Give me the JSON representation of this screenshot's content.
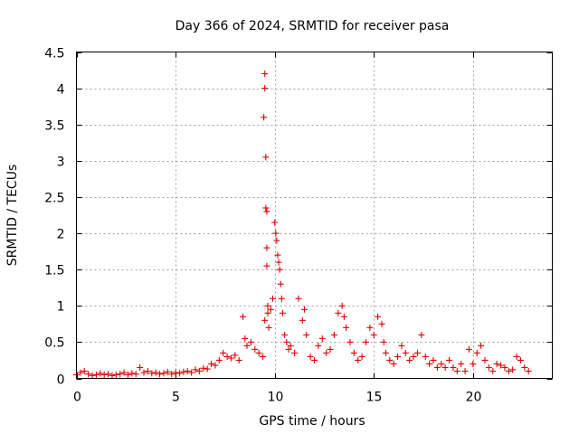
{
  "chart_data": {
    "type": "scatter",
    "title": "Day 366 of 2024, SRMTID for receiver pasa",
    "xlabel": "GPS time / hours",
    "ylabel": "SRMTID / TECUs",
    "xlim": [
      0,
      24
    ],
    "ylim": [
      0,
      4.5
    ],
    "xticks": [
      0,
      5,
      10,
      15,
      20
    ],
    "yticks": [
      0,
      0.5,
      1,
      1.5,
      2,
      2.5,
      3,
      3.5,
      4,
      4.5
    ],
    "xtick_labels": [
      "0",
      "5",
      "10",
      "15",
      "20"
    ],
    "ytick_labels": [
      "0",
      "0.5",
      "1",
      "1.5",
      "2",
      "2.5",
      "3",
      "3.5",
      "4",
      "4.5"
    ],
    "grid": true,
    "marker": "+",
    "color": "#e00000",
    "series": [
      {
        "name": "pasa",
        "x": [
          0.0,
          0.2,
          0.4,
          0.6,
          0.8,
          1.0,
          1.2,
          1.4,
          1.6,
          1.8,
          2.0,
          2.2,
          2.4,
          2.6,
          2.8,
          3.0,
          3.2,
          3.4,
          3.6,
          3.8,
          4.0,
          4.2,
          4.4,
          4.6,
          4.8,
          5.0,
          5.2,
          5.4,
          5.6,
          5.8,
          6.0,
          6.2,
          6.4,
          6.6,
          6.8,
          7.0,
          7.2,
          7.4,
          7.6,
          7.8,
          8.0,
          8.2,
          8.4,
          8.5,
          8.6,
          8.8,
          9.0,
          9.2,
          9.4,
          9.45,
          9.5,
          9.5,
          9.5,
          9.55,
          9.55,
          9.6,
          9.6,
          9.6,
          9.65,
          9.65,
          9.7,
          9.8,
          9.9,
          10.0,
          10.05,
          10.1,
          10.15,
          10.2,
          10.25,
          10.3,
          10.35,
          10.4,
          10.5,
          10.6,
          10.7,
          10.8,
          11.0,
          11.2,
          11.4,
          11.5,
          11.6,
          11.8,
          12.0,
          12.2,
          12.4,
          12.6,
          12.8,
          13.0,
          13.2,
          13.4,
          13.5,
          13.6,
          13.8,
          14.0,
          14.2,
          14.4,
          14.6,
          14.8,
          15.0,
          15.2,
          15.4,
          15.5,
          15.6,
          15.8,
          16.0,
          16.2,
          16.4,
          16.6,
          16.8,
          17.0,
          17.2,
          17.4,
          17.6,
          17.8,
          18.0,
          18.2,
          18.4,
          18.6,
          18.8,
          19.0,
          19.2,
          19.4,
          19.6,
          19.8,
          20.0,
          20.2,
          20.4,
          20.6,
          20.8,
          21.0,
          21.2,
          21.4,
          21.6,
          21.8,
          22.0,
          22.2,
          22.4,
          22.6,
          22.8
        ],
        "y": [
          0.05,
          0.08,
          0.1,
          0.06,
          0.04,
          0.05,
          0.07,
          0.05,
          0.06,
          0.04,
          0.05,
          0.06,
          0.08,
          0.05,
          0.07,
          0.06,
          0.15,
          0.08,
          0.1,
          0.07,
          0.08,
          0.06,
          0.07,
          0.09,
          0.06,
          0.08,
          0.07,
          0.09,
          0.1,
          0.08,
          0.12,
          0.1,
          0.14,
          0.13,
          0.2,
          0.18,
          0.25,
          0.35,
          0.3,
          0.28,
          0.32,
          0.25,
          0.85,
          0.55,
          0.45,
          0.5,
          0.4,
          0.35,
          0.3,
          3.6,
          4.2,
          4.0,
          0.8,
          3.05,
          2.35,
          2.3,
          1.8,
          1.55,
          1.0,
          0.9,
          0.7,
          0.95,
          1.1,
          2.15,
          2.0,
          1.9,
          1.7,
          1.6,
          1.5,
          1.3,
          1.1,
          0.9,
          0.6,
          0.5,
          0.4,
          0.45,
          0.35,
          1.1,
          0.8,
          0.95,
          0.6,
          0.3,
          0.25,
          0.45,
          0.55,
          0.35,
          0.4,
          0.6,
          0.9,
          1.0,
          0.85,
          0.7,
          0.5,
          0.35,
          0.25,
          0.3,
          0.5,
          0.7,
          0.6,
          0.85,
          0.75,
          0.5,
          0.35,
          0.25,
          0.2,
          0.3,
          0.45,
          0.35,
          0.25,
          0.3,
          0.35,
          0.6,
          0.3,
          0.2,
          0.25,
          0.15,
          0.2,
          0.15,
          0.25,
          0.15,
          0.1,
          0.2,
          0.1,
          0.4,
          0.2,
          0.35,
          0.45,
          0.25,
          0.15,
          0.1,
          0.2,
          0.18,
          0.15,
          0.1,
          0.12,
          0.3,
          0.25,
          0.15,
          0.1
        ]
      }
    ]
  }
}
